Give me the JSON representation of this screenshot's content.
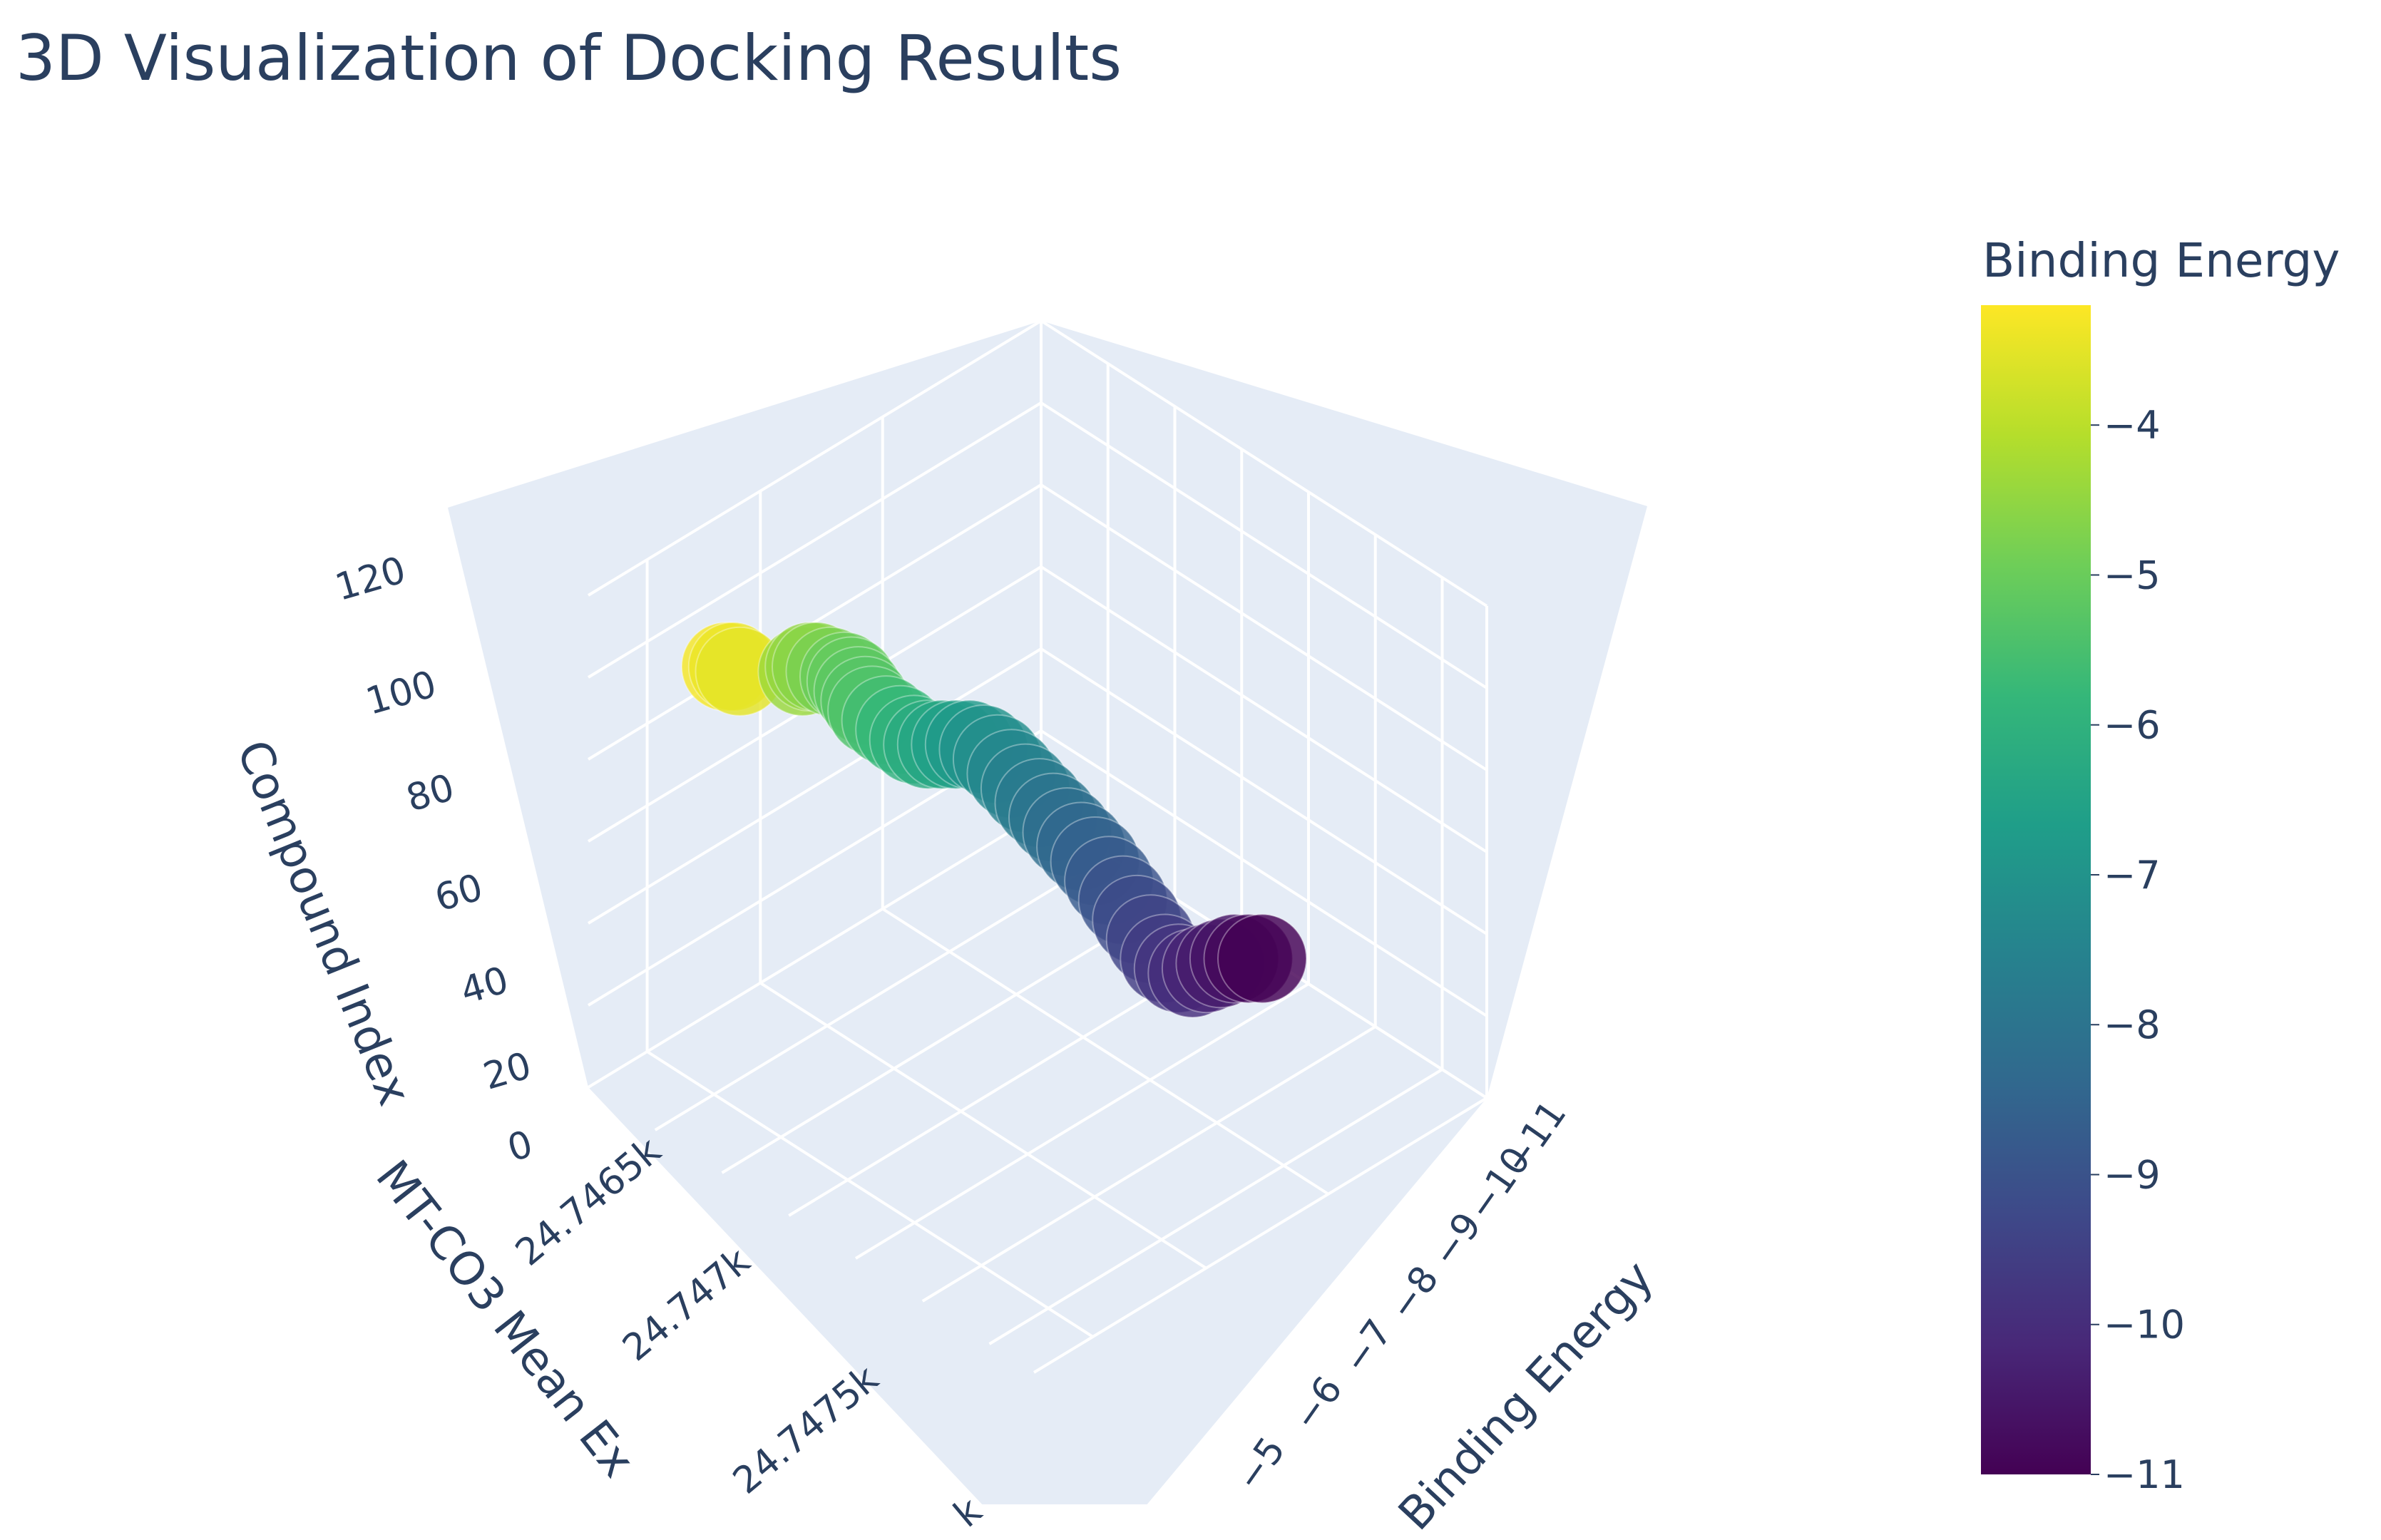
{
  "chart_data": {
    "type": "scatter3d",
    "title": "3D Visualization of Docking Results",
    "axes": {
      "x": {
        "label": "Binding Energy",
        "ticks": [
          "−5",
          "−6",
          "−7",
          "−8",
          "−9",
          "−10",
          "−11"
        ]
      },
      "y": {
        "label": "MT-CO3 Mean Ex",
        "ticks": [
          "24.7465k",
          "24.747k",
          "24.7475k",
          "k"
        ]
      },
      "z": {
        "label": "Compound Index",
        "ticks": [
          "0",
          "20",
          "40",
          "60",
          "80",
          "100",
          "120"
        ],
        "range": [
          0,
          120
        ]
      }
    },
    "colorbar": {
      "title": "Binding Energy",
      "colorscale": "Viridis",
      "range": [
        -11,
        -3.2
      ],
      "ticks": [
        "−4",
        "−5",
        "−6",
        "−7",
        "−8",
        "−9",
        "−10",
        "−11"
      ],
      "colors": [
        "#440154",
        "#482878",
        "#3e4989",
        "#31688e",
        "#26828e",
        "#1f9e89",
        "#35b779",
        "#6ece58",
        "#b5de2b",
        "#fde725"
      ]
    },
    "points": [
      {
        "energy": -3.3,
        "index": 100
      },
      {
        "energy": -3.4,
        "index": 100
      },
      {
        "energy": -3.5,
        "index": 99
      },
      {
        "energy": -4.4,
        "index": 99
      },
      {
        "energy": -4.5,
        "index": 100
      },
      {
        "energy": -4.6,
        "index": 100
      },
      {
        "energy": -4.8,
        "index": 99
      },
      {
        "energy": -5.0,
        "index": 98
      },
      {
        "energy": -5.1,
        "index": 97
      },
      {
        "energy": -5.2,
        "index": 95
      },
      {
        "energy": -5.3,
        "index": 93
      },
      {
        "energy": -5.4,
        "index": 91
      },
      {
        "energy": -5.6,
        "index": 89
      },
      {
        "energy": -5.8,
        "index": 87
      },
      {
        "energy": -6.0,
        "index": 85
      },
      {
        "energy": -6.2,
        "index": 84
      },
      {
        "energy": -6.4,
        "index": 84
      },
      {
        "energy": -6.6,
        "index": 84
      },
      {
        "energy": -6.8,
        "index": 84
      },
      {
        "energy": -7.0,
        "index": 83
      },
      {
        "energy": -7.2,
        "index": 81
      },
      {
        "energy": -7.4,
        "index": 78
      },
      {
        "energy": -7.6,
        "index": 75
      },
      {
        "energy": -7.8,
        "index": 72
      },
      {
        "energy": -8.0,
        "index": 69
      },
      {
        "energy": -8.2,
        "index": 66
      },
      {
        "energy": -8.4,
        "index": 63
      },
      {
        "energy": -8.6,
        "index": 60
      },
      {
        "energy": -8.8,
        "index": 56
      },
      {
        "energy": -9.0,
        "index": 52
      },
      {
        "energy": -9.2,
        "index": 48
      },
      {
        "energy": -9.4,
        "index": 44
      },
      {
        "energy": -9.6,
        "index": 40
      },
      {
        "energy": -9.8,
        "index": 38
      },
      {
        "energy": -10.0,
        "index": 37
      },
      {
        "energy": -10.2,
        "index": 38
      },
      {
        "energy": -10.4,
        "index": 39
      },
      {
        "energy": -10.6,
        "index": 40
      },
      {
        "energy": -10.8,
        "index": 40
      },
      {
        "energy": -11.0,
        "index": 40
      }
    ]
  }
}
